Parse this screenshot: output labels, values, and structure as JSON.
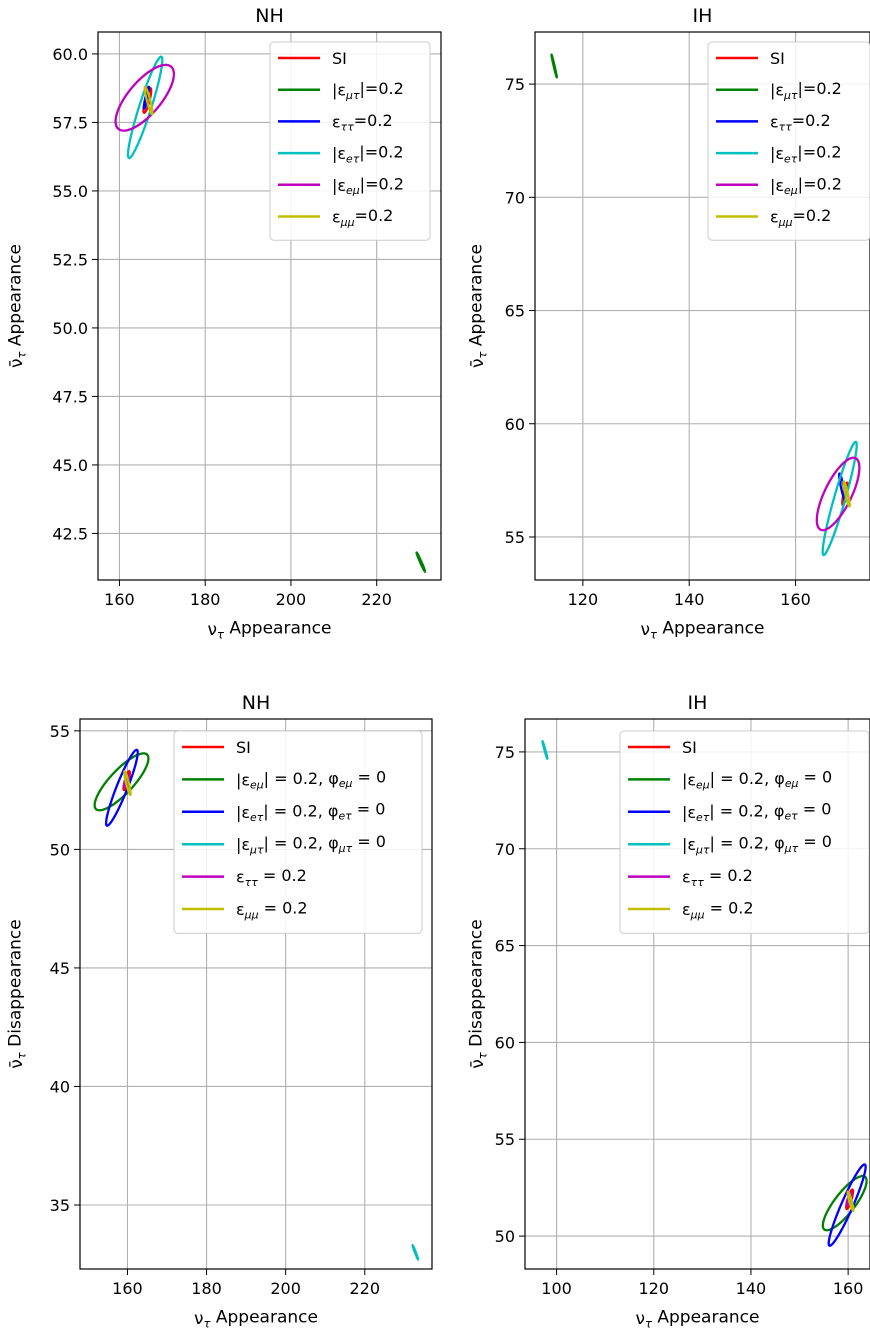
{
  "chart_data": [
    {
      "type": "line",
      "title": "NH",
      "xlabel": "ν_τ Appearance",
      "ylabel": "ν̄_τ Appearance",
      "xlim": [
        155,
        235
      ],
      "ylim": [
        40.8,
        60.8
      ],
      "xticks": [
        160,
        180,
        200,
        220
      ],
      "xtick_labels": [
        "160",
        "180",
        "200",
        "220"
      ],
      "yticks": [
        42.5,
        45.0,
        47.5,
        50.0,
        52.5,
        55.0,
        57.5,
        60.0
      ],
      "ytick_labels": [
        "42.5",
        "45.0",
        "47.5",
        "50.0",
        "52.5",
        "55.0",
        "57.5",
        "60.0"
      ],
      "grid": true,
      "legend_position": "top-right",
      "series": [
        {
          "name": "SI",
          "color": "#ff0000",
          "ellipse": {
            "cx": 166.5,
            "cy": 58.3,
            "x_extent": 0.9,
            "y_extent": 0.45,
            "rho": 0.8
          }
        },
        {
          "name": "|ε_μτ|=0.2",
          "color": "#008000",
          "ellipse": {
            "cx": 230.3,
            "cy": 41.45,
            "x_extent": 1.0,
            "y_extent": 0.35,
            "rho": -0.985
          }
        },
        {
          "name": "ε_ττ=0.2",
          "color": "#0000ff",
          "ellipse": {
            "cx": 166.3,
            "cy": 58.4,
            "x_extent": 0.6,
            "y_extent": 0.4,
            "rho": 0.9
          }
        },
        {
          "name": "|ε_eτ|=0.2",
          "color": "#00bfbf",
          "ellipse": {
            "cx": 166.0,
            "cy": 58.05,
            "x_extent": 4.0,
            "y_extent": 1.85,
            "rho": 0.93
          }
        },
        {
          "name": "|ε_eμ|=0.2",
          "color": "#bf00bf",
          "ellipse": {
            "cx": 165.9,
            "cy": 58.4,
            "x_extent": 6.8,
            "y_extent": 1.2,
            "rho": 0.72
          }
        },
        {
          "name": "ε_μμ=0.2",
          "color": "#bfbf00",
          "ellipse": {
            "cx": 166.8,
            "cy": 58.3,
            "x_extent": 0.9,
            "y_extent": 0.5,
            "rho": -0.9
          }
        }
      ]
    },
    {
      "type": "line",
      "title": "IH",
      "xlabel": "ν_τ Appearance",
      "ylabel": "ν̄_τ Appearance",
      "xlim": [
        111,
        174
      ],
      "ylim": [
        53.1,
        77.3
      ],
      "xticks": [
        120,
        140,
        160
      ],
      "xtick_labels": [
        "120",
        "140",
        "160"
      ],
      "yticks": [
        55,
        60,
        65,
        70,
        75
      ],
      "ytick_labels": [
        "55",
        "60",
        "65",
        "70",
        "75"
      ],
      "grid": true,
      "legend_position": "top-right",
      "series": [
        {
          "name": "SI",
          "color": "#ff0000",
          "ellipse": {
            "cx": 169.3,
            "cy": 56.9,
            "x_extent": 0.5,
            "y_extent": 0.5,
            "rho": 0.8
          }
        },
        {
          "name": "|ε_μτ|=0.2",
          "color": "#008000",
          "ellipse": {
            "cx": 114.6,
            "cy": 75.8,
            "x_extent": 0.5,
            "y_extent": 0.5,
            "rho": -0.985
          }
        },
        {
          "name": "ε_ττ=0.2",
          "color": "#0000ff",
          "ellipse": {
            "cx": 168.8,
            "cy": 57.2,
            "x_extent": 0.6,
            "y_extent": 0.6,
            "rho": -0.9
          }
        },
        {
          "name": "|ε_eτ|=0.2",
          "color": "#00bfbf",
          "ellipse": {
            "cx": 168.3,
            "cy": 56.7,
            "x_extent": 3.2,
            "y_extent": 2.5,
            "rho": 0.94
          }
        },
        {
          "name": "|ε_eμ|=0.2",
          "color": "#bf00bf",
          "ellipse": {
            "cx": 168.0,
            "cy": 56.9,
            "x_extent": 4.0,
            "y_extent": 1.6,
            "rho": 0.72
          }
        },
        {
          "name": "ε_μμ=0.2",
          "color": "#bfbf00",
          "ellipse": {
            "cx": 169.6,
            "cy": 56.9,
            "x_extent": 0.6,
            "y_extent": 0.55,
            "rho": -0.9
          }
        }
      ]
    },
    {
      "type": "line",
      "title": "NH",
      "xlabel": "ν_τ Appearance",
      "ylabel": "ν̄_τ Disappearance",
      "xlim": [
        148,
        237
      ],
      "ylim": [
        32.3,
        55.5
      ],
      "xticks": [
        160,
        180,
        200,
        220
      ],
      "xtick_labels": [
        "160",
        "180",
        "200",
        "220"
      ],
      "yticks": [
        35,
        40,
        45,
        50,
        55
      ],
      "ytick_labels": [
        "35",
        "40",
        "45",
        "50",
        "55"
      ],
      "grid": true,
      "legend_position": "top-right",
      "series": [
        {
          "name": "SI",
          "color": "#ff0000",
          "ellipse": {
            "cx": 159.8,
            "cy": 52.9,
            "x_extent": 0.8,
            "y_extent": 0.4,
            "rho": 0.8
          }
        },
        {
          "name": "|ε_eμ| = 0.2, φ_eμ = 0",
          "color": "#008000",
          "ellipse": {
            "cx": 158.5,
            "cy": 52.85,
            "x_extent": 6.8,
            "y_extent": 1.2,
            "rho": 0.82
          }
        },
        {
          "name": "|ε_eτ| = 0.2, φ_eτ = 0",
          "color": "#0000ff",
          "ellipse": {
            "cx": 158.6,
            "cy": 52.6,
            "x_extent": 4.0,
            "y_extent": 1.6,
            "rho": 0.93
          }
        },
        {
          "name": "|ε_μτ| = 0.2, φ_μτ = 0",
          "color": "#00bfbf",
          "ellipse": {
            "cx": 232.8,
            "cy": 33.0,
            "x_extent": 0.7,
            "y_extent": 0.3,
            "rho": -0.985
          }
        },
        {
          "name": "ε_ττ = 0.2",
          "color": "#bf00bf",
          "ellipse": {
            "cx": 159.7,
            "cy": 52.9,
            "x_extent": 0.5,
            "y_extent": 0.3,
            "rho": 0.8
          }
        },
        {
          "name": "ε_μμ = 0.2",
          "color": "#bfbf00",
          "ellipse": {
            "cx": 160.0,
            "cy": 52.8,
            "x_extent": 0.8,
            "y_extent": 0.5,
            "rho": -0.9
          }
        }
      ]
    },
    {
      "type": "line",
      "title": "IH",
      "xlabel": "ν_τ Appearance",
      "ylabel": "ν̄_τ Disappearance",
      "xlim": [
        93.5,
        164.5
      ],
      "ylim": [
        48.3,
        76.7
      ],
      "xticks": [
        100,
        120,
        140,
        160
      ],
      "xtick_labels": [
        "100",
        "120",
        "140",
        "160"
      ],
      "yticks": [
        50,
        55,
        60,
        65,
        70,
        75
      ],
      "ytick_labels": [
        "50",
        "55",
        "60",
        "65",
        "70",
        "75"
      ],
      "grid": true,
      "legend_position": "top-right",
      "series": [
        {
          "name": "SI",
          "color": "#ff0000",
          "ellipse": {
            "cx": 160.3,
            "cy": 51.9,
            "x_extent": 0.7,
            "y_extent": 0.5,
            "rho": 0.8
          }
        },
        {
          "name": "|ε_eμ| = 0.2, φ_eμ = 0",
          "color": "#008000",
          "ellipse": {
            "cx": 159.3,
            "cy": 51.7,
            "x_extent": 4.5,
            "y_extent": 1.4,
            "rho": 0.82
          }
        },
        {
          "name": "|ε_eτ| = 0.2, φ_eτ = 0",
          "color": "#0000ff",
          "ellipse": {
            "cx": 159.8,
            "cy": 51.6,
            "x_extent": 3.8,
            "y_extent": 2.1,
            "rho": 0.94
          }
        },
        {
          "name": "|ε_μτ| = 0.2, φ_μτ = 0",
          "color": "#00bfbf",
          "ellipse": {
            "cx": 97.6,
            "cy": 75.1,
            "x_extent": 0.5,
            "y_extent": 0.45,
            "rho": -0.985
          }
        },
        {
          "name": "ε_ττ = 0.2",
          "color": "#bf00bf",
          "ellipse": {
            "cx": 160.2,
            "cy": 51.9,
            "x_extent": 0.5,
            "y_extent": 0.35,
            "rho": 0.8
          }
        },
        {
          "name": "ε_μμ = 0.2",
          "color": "#bfbf00",
          "ellipse": {
            "cx": 160.5,
            "cy": 51.8,
            "x_extent": 0.6,
            "y_extent": 0.5,
            "rho": -0.9
          }
        }
      ]
    }
  ]
}
